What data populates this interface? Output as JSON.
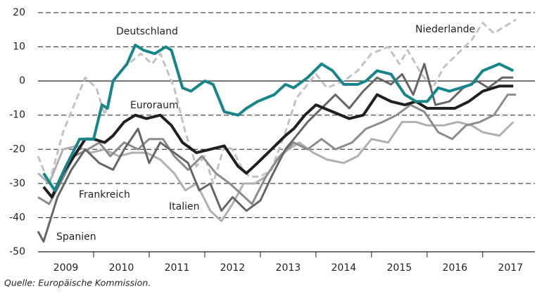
{
  "chart_data": {
    "type": "line",
    "source": "Quelle: Europäische Kommission.",
    "xlim": [
      2009,
      2017.94
    ],
    "xticks": [
      {
        "value": 2009.5,
        "label": "2009"
      },
      {
        "value": 2010.5,
        "label": "2010"
      },
      {
        "value": 2011.5,
        "label": "2011"
      },
      {
        "value": 2012.5,
        "label": "2012"
      },
      {
        "value": 2013.5,
        "label": "2013"
      },
      {
        "value": 2014.5,
        "label": "2014"
      },
      {
        "value": 2015.5,
        "label": "2015"
      },
      {
        "value": 2016.5,
        "label": "2016"
      },
      {
        "value": 2017.5,
        "label": "2017"
      }
    ],
    "ylim": [
      -50,
      20
    ],
    "yticks": [
      -50,
      -40,
      -30,
      -20,
      -10,
      0,
      10,
      20
    ],
    "grid": true,
    "series": [
      {
        "name": "Niederlande",
        "color": "#c2c2c2",
        "dashed": true,
        "x": [
          2009.0,
          2009.2,
          2009.45,
          2009.7,
          2009.85,
          2010.05,
          2010.2,
          2010.35,
          2010.55,
          2010.85,
          2011.05,
          2011.2,
          2011.45,
          2011.65,
          2011.85,
          2012.0,
          2012.15,
          2012.35,
          2012.5,
          2012.65,
          2012.8,
          2013.0,
          2013.2,
          2013.45,
          2013.65,
          2014.0,
          2014.2,
          2014.5,
          2014.75,
          2015.0,
          2015.3,
          2015.5,
          2015.65,
          2015.9,
          2016.1,
          2016.3,
          2016.55,
          2016.8,
          2017.0,
          2017.2,
          2017.4,
          2017.6
        ],
        "values": [
          -22,
          -30,
          -15,
          -5,
          1,
          -2,
          -10,
          0,
          4,
          8,
          5,
          8,
          -2,
          -15,
          -25,
          -22,
          -30,
          -19,
          -20,
          -25,
          -28,
          -28,
          -26,
          -15,
          -5,
          2,
          -2,
          0,
          3,
          8,
          10,
          5,
          9,
          2,
          -2,
          4,
          8,
          12,
          17,
          14,
          16,
          18
        ]
      },
      {
        "name": "Italien",
        "color": "#b0b0b0",
        "x": [
          2009.0,
          2009.2,
          2009.45,
          2009.7,
          2009.95,
          2010.2,
          2010.45,
          2010.7,
          2010.95,
          2011.2,
          2011.45,
          2011.65,
          2011.85,
          2012.1,
          2012.3,
          2012.5,
          2012.7,
          2012.9,
          2013.1,
          2013.3,
          2013.5,
          2013.7,
          2013.95,
          2014.2,
          2014.5,
          2014.75,
          2015.0,
          2015.3,
          2015.55,
          2015.8,
          2016.0,
          2016.3,
          2016.55,
          2016.8,
          2017.0,
          2017.3,
          2017.55
        ],
        "values": [
          -27,
          -30,
          -20,
          -19,
          -21,
          -20,
          -22,
          -21,
          -21,
          -23,
          -27,
          -32,
          -30,
          -38,
          -41,
          -36,
          -30,
          -30,
          -28,
          -23,
          -20,
          -18,
          -21,
          -23,
          -24,
          -22,
          -17,
          -18,
          -12,
          -12,
          -13,
          -13,
          -12,
          -13,
          -15,
          -16,
          -12
        ]
      },
      {
        "name": "Frankreich",
        "color": "#8c8c8c",
        "x": [
          2009.0,
          2009.2,
          2009.4,
          2009.65,
          2009.9,
          2010.1,
          2010.3,
          2010.55,
          2010.8,
          2011.0,
          2011.25,
          2011.45,
          2011.7,
          2011.95,
          2012.2,
          2012.45,
          2012.65,
          2012.85,
          2013.1,
          2013.35,
          2013.6,
          2013.85,
          2014.1,
          2014.35,
          2014.65,
          2014.9,
          2015.2,
          2015.45,
          2015.7,
          2015.95,
          2016.2,
          2016.45,
          2016.7,
          2016.95,
          2017.2,
          2017.45,
          2017.6
        ],
        "values": [
          -34,
          -36,
          -30,
          -22,
          -20,
          -18,
          -22,
          -18,
          -20,
          -17,
          -17,
          -22,
          -26,
          -22,
          -27,
          -30,
          -33,
          -36,
          -28,
          -22,
          -18,
          -20,
          -17,
          -20,
          -18,
          -14,
          -12,
          -10,
          -7,
          -9,
          -15,
          -17,
          -13,
          -12,
          -10,
          -4,
          -4
        ]
      },
      {
        "name": "Spanien",
        "color": "#666666",
        "x": [
          2009.0,
          2009.1,
          2009.35,
          2009.6,
          2009.85,
          2010.1,
          2010.35,
          2010.55,
          2010.8,
          2011.0,
          2011.2,
          2011.45,
          2011.7,
          2011.9,
          2012.1,
          2012.3,
          2012.5,
          2012.75,
          2013.0,
          2013.2,
          2013.45,
          2013.65,
          2013.85,
          2014.1,
          2014.35,
          2014.6,
          2014.85,
          2015.1,
          2015.35,
          2015.55,
          2015.75,
          2015.95,
          2016.15,
          2016.4,
          2016.65,
          2016.9,
          2017.1,
          2017.35,
          2017.55
        ],
        "values": [
          -44,
          -47,
          -34,
          -26,
          -20,
          -24,
          -26,
          -20,
          -14,
          -24,
          -18,
          -21,
          -24,
          -32,
          -30,
          -38,
          -34,
          -38,
          -35,
          -28,
          -20,
          -16,
          -12,
          -8,
          -4,
          -8,
          -3,
          1,
          -1,
          2,
          -4,
          5,
          -7,
          -6,
          -2,
          0,
          -2,
          1,
          1
        ]
      },
      {
        "name": "Euroraum",
        "color": "#231f20",
        "thick": true,
        "x": [
          2009.1,
          2009.25,
          2009.45,
          2009.65,
          2009.85,
          2010.0,
          2010.2,
          2010.35,
          2010.55,
          2010.75,
          2010.95,
          2011.2,
          2011.4,
          2011.6,
          2011.85,
          2012.1,
          2012.35,
          2012.6,
          2012.75,
          2012.95,
          2013.2,
          2013.45,
          2013.6,
          2013.8,
          2014.0,
          2014.3,
          2014.6,
          2014.85,
          2015.1,
          2015.35,
          2015.6,
          2015.8,
          2016.0,
          2016.25,
          2016.5,
          2016.75,
          2017.0,
          2017.3,
          2017.55
        ],
        "values": [
          -31,
          -34,
          -27,
          -22,
          -17,
          -17,
          -18,
          -16,
          -12,
          -10,
          -11,
          -10,
          -13,
          -18,
          -21,
          -20,
          -19,
          -25,
          -27,
          -24,
          -20,
          -16,
          -14,
          -10,
          -7,
          -9,
          -11,
          -10,
          -4,
          -6,
          -7,
          -6,
          -8,
          -8,
          -8,
          -6,
          -3,
          -1.5,
          -1.5
        ]
      },
      {
        "name": "Deutschland",
        "color": "#16868a",
        "thick": true,
        "x": [
          2009.1,
          2009.3,
          2009.5,
          2009.75,
          2010.0,
          2010.15,
          2010.25,
          2010.35,
          2010.6,
          2010.75,
          2010.9,
          2011.1,
          2011.3,
          2011.4,
          2011.6,
          2011.75,
          2012.0,
          2012.15,
          2012.35,
          2012.6,
          2012.75,
          2012.95,
          2013.25,
          2013.45,
          2013.6,
          2013.85,
          2014.1,
          2014.3,
          2014.5,
          2014.75,
          2014.9,
          2015.1,
          2015.35,
          2015.6,
          2015.8,
          2016.0,
          2016.2,
          2016.4,
          2016.6,
          2016.8,
          2017.0,
          2017.3,
          2017.55
        ],
        "values": [
          -27,
          -32,
          -25,
          -17,
          -17,
          -7,
          -8,
          0,
          5,
          10.5,
          9,
          8,
          10,
          9,
          -2,
          -3,
          0,
          -1,
          -9,
          -10,
          -8,
          -6,
          -4,
          -1,
          -2,
          1,
          5,
          3,
          -1,
          -1,
          0,
          3,
          2,
          -4,
          -6,
          -6,
          -2,
          -3,
          -2,
          -1,
          3,
          5,
          3
        ]
      }
    ]
  }
}
